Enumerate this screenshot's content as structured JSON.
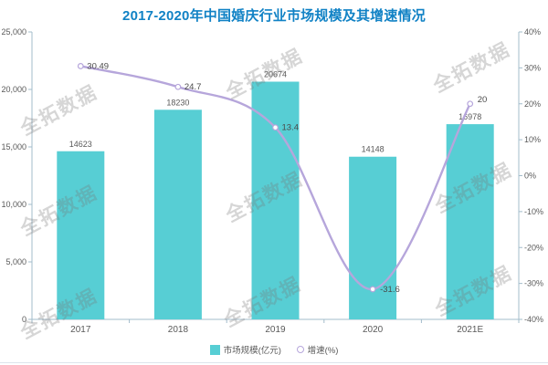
{
  "title": "2017-2020年中国婚庆行业市场规模及其增速情况",
  "watermark": "全拓数据",
  "legend": [
    {
      "label": "市场规模(亿元)",
      "marker": "square"
    },
    {
      "label": "增速(%)",
      "marker": "circle"
    }
  ],
  "colors": {
    "title": "#1182c5",
    "bar": "#57ced4",
    "line": "#b6a6db",
    "axis": "#a3bccb",
    "text": "#595959",
    "point_label": "#4a4a4a"
  },
  "chart_data": {
    "type": "bar",
    "subtype": "combo bar+smooth-line, secondary axis",
    "title": "2017-2020年中国婚庆行业市场规模及其增速情况",
    "categories": [
      "2017",
      "2018",
      "2019",
      "2020",
      "2021E"
    ],
    "series": [
      {
        "name": "市场规模(亿元)",
        "type": "bar",
        "axis": "left",
        "values": [
          14623,
          18230,
          20674,
          14148,
          16978
        ],
        "labels": [
          "14623",
          "18230",
          "20674",
          "14148",
          "16978"
        ]
      },
      {
        "name": "增速(%)",
        "type": "line",
        "axis": "right",
        "smooth": true,
        "values": [
          30.49,
          24.7,
          13.4,
          -31.6,
          20
        ],
        "labels": [
          "30.49",
          "24.7",
          "13.4",
          "-31.6",
          "20"
        ]
      }
    ],
    "left_axis": {
      "min": 0,
      "max": 25000,
      "step": 5000,
      "tick_labels": [
        "0",
        "5,000",
        "10,000",
        "15,000",
        "20,000",
        "25,000"
      ]
    },
    "right_axis": {
      "min": -40,
      "max": 40,
      "step": 10,
      "tick_labels": [
        "-40%",
        "-30%",
        "-20%",
        "-10%",
        "0%",
        "10%",
        "20%",
        "30%",
        "40%"
      ]
    },
    "grid": false,
    "legend_position": "bottom"
  }
}
